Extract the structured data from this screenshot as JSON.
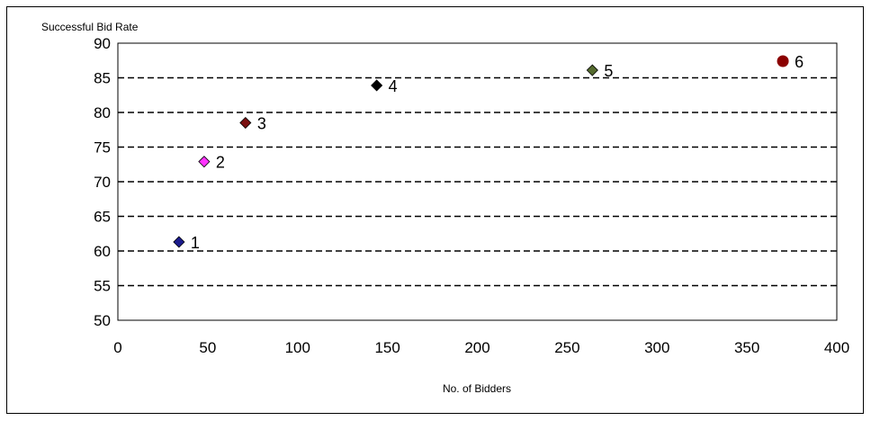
{
  "chart_data": {
    "type": "scatter",
    "title": "",
    "xlabel": "No. of Bidders",
    "ylabel": "Successful Bid Rate",
    "xlim": [
      0,
      400
    ],
    "ylim": [
      50,
      90
    ],
    "x_ticks": [
      "0",
      "50",
      "100",
      "150",
      "200",
      "250",
      "300",
      "350",
      "400"
    ],
    "y_ticks": [
      "50",
      "55",
      "60",
      "65",
      "70",
      "75",
      "80",
      "85",
      "90"
    ],
    "grid": {
      "horizontal": true,
      "style": "dashed"
    },
    "legend": "none",
    "points": [
      {
        "label": "1",
        "x": 34,
        "y": 61.3,
        "color": "#1b1b8c",
        "marker": "diamond"
      },
      {
        "label": "2",
        "x": 48,
        "y": 72.9,
        "color": "#ff33ff",
        "marker": "diamond"
      },
      {
        "label": "3",
        "x": 71,
        "y": 78.5,
        "color": "#7a1010",
        "marker": "diamond"
      },
      {
        "label": "4",
        "x": 144,
        "y": 83.9,
        "color": "#000000",
        "marker": "diamond"
      },
      {
        "label": "5",
        "x": 264,
        "y": 86.1,
        "color": "#556b2f",
        "marker": "diamond"
      },
      {
        "label": "6",
        "x": 370,
        "y": 87.4,
        "color": "#8b0000",
        "marker": "circle"
      }
    ]
  }
}
